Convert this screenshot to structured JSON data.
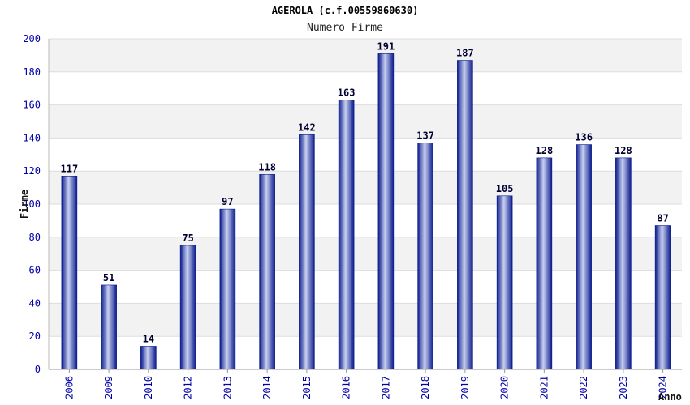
{
  "chart_data": {
    "type": "bar",
    "title": "AGEROLA (c.f.00559860630)",
    "subtitle": "Numero Firme",
    "xlabel": "Anno",
    "ylabel": "Firme",
    "categories": [
      "2006",
      "2009",
      "2010",
      "2012",
      "2013",
      "2014",
      "2015",
      "2016",
      "2017",
      "2018",
      "2019",
      "2020",
      "2021",
      "2022",
      "2023",
      "2024"
    ],
    "values": [
      117,
      51,
      14,
      75,
      97,
      118,
      142,
      163,
      191,
      137,
      187,
      105,
      128,
      136,
      128,
      87
    ],
    "ylim": [
      0,
      200
    ],
    "yticks": [
      "0",
      "20",
      "40",
      "60",
      "80",
      "100",
      "120",
      "140",
      "160",
      "180",
      "200"
    ],
    "grid": true,
    "legend": "none",
    "colors": {
      "bar_dark": "#0a1a8c",
      "bar_light": "#c8d0f0",
      "band": "#f2f2f2",
      "tick_text": "#0000aa"
    }
  }
}
